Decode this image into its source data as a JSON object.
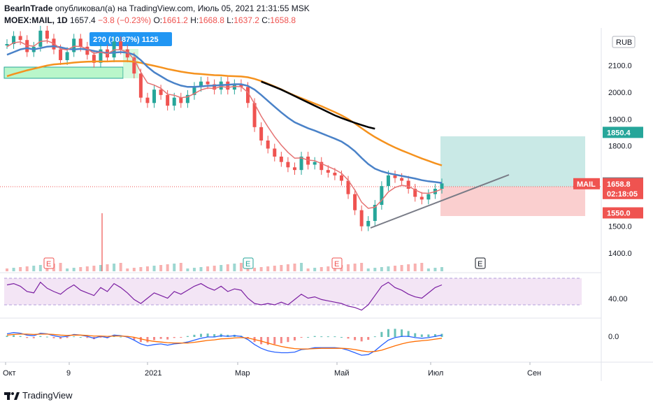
{
  "header": {
    "author": "BearInTrade",
    "published_text": "опубликовал(а) на TradingView.com, Июль 05, 2021 21:31:55 MSK",
    "symbol": "MOEX:MAIL, 1D",
    "last": "1657.4",
    "change": "−3.8 (−0.23%)",
    "o_label": "O:",
    "o_value": "1661.2",
    "h_label": "H:",
    "h_value": "1668.8",
    "l_label": "L:",
    "l_value": "1637.2",
    "c_label": "C:",
    "c_value": "1658.8"
  },
  "footer": {
    "brand": "TradingView"
  },
  "colors": {
    "up": "#26a69a",
    "down": "#ef5350",
    "ema_slow": "#f5921e",
    "ema_mid": "#4a82c8",
    "ema_black": "#000000",
    "rsi": "#7b1fa2",
    "rsi_band": "#e9d8f8",
    "macd": "#2962ff",
    "signal": "#ff6d00",
    "target": "#26a69a",
    "stop": "#ef5350"
  },
  "chart_data": [
    {
      "type": "candlestick",
      "symbol": "MAIL",
      "timeframe": "1D",
      "currency_badge": "RUB",
      "y_ticks": [
        "2100.0",
        "2000.0",
        "1900.0",
        "1800.0",
        "1500.0",
        "1400.0"
      ],
      "y_range": [
        1340,
        2240
      ],
      "x_ticks": [
        "Окт",
        "9",
        "2021",
        "Мар",
        "Май",
        "Июл",
        "Сен"
      ],
      "price_tags": [
        {
          "label": "1850.4",
          "value": 1850.4,
          "color": "#26a69a"
        },
        {
          "label": "1661.8",
          "value": 1661.8,
          "color": "#787b86"
        },
        {
          "label": "1658.8",
          "value": 1658.8,
          "color": "#ef5350",
          "name": "MAIL",
          "countdown": "02:18:05"
        },
        {
          "label": "1550.0",
          "value": 1550.0,
          "color": "#ef5350"
        }
      ],
      "range_label": "2?0 (10.87%) 1125",
      "earnings_markers": [
        "E",
        "E",
        "E",
        "E"
      ],
      "series": [
        {
          "role": "close",
          "values": [
            2180,
            2210,
            2195,
            2150,
            2170,
            2230,
            2200,
            2160,
            2120,
            2150,
            2200,
            2170,
            2140,
            2110,
            2160,
            2130,
            2190,
            2160,
            2130,
            2070,
            1980,
            1960,
            2010,
            1990,
            1950,
            1980,
            1960,
            1990,
            2020,
            2040,
            2030,
            2010,
            2040,
            2010,
            2030,
            2020,
            1960,
            1870,
            1820,
            1790,
            1760,
            1740,
            1720,
            1710,
            1760,
            1730,
            1740,
            1710,
            1700,
            1690,
            1670,
            1620,
            1560,
            1500,
            1520,
            1580,
            1650,
            1690,
            1680,
            1670,
            1640,
            1610,
            1600,
            1620,
            1640,
            1660
          ]
        },
        {
          "role": "ema_fast",
          "values": [
            2170,
            2185,
            2188,
            2175,
            2172,
            2190,
            2192,
            2182,
            2162,
            2158,
            2172,
            2171,
            2162,
            2145,
            2150,
            2143,
            2158,
            2159,
            2150,
            2123,
            2075,
            2035,
            2027,
            2015,
            1993,
            1989,
            1980,
            1983,
            1995,
            2009,
            2016,
            2014,
            2022,
            2018,
            2022,
            2021,
            2000,
            1957,
            1911,
            1871,
            1834,
            1803,
            1776,
            1754,
            1755,
            1747,
            1745,
            1734,
            1723,
            1712,
            1698,
            1672,
            1635,
            1590,
            1567,
            1571,
            1597,
            1628,
            1645,
            1653,
            1649,
            1636,
            1624,
            1623,
            1629,
            1639
          ]
        },
        {
          "role": "ema_mid",
          "values": [
            2140,
            2150,
            2160,
            2165,
            2160,
            2165,
            2170,
            2172,
            2168,
            2162,
            2160,
            2162,
            2160,
            2154,
            2150,
            2146,
            2148,
            2150,
            2148,
            2140,
            2120,
            2095,
            2075,
            2060,
            2045,
            2034,
            2025,
            2020,
            2020,
            2022,
            2024,
            2025,
            2027,
            2028,
            2030,
            2030,
            2024,
            2010,
            1990,
            1968,
            1946,
            1925,
            1905,
            1888,
            1877,
            1866,
            1857,
            1847,
            1837,
            1827,
            1816,
            1800,
            1780,
            1755,
            1732,
            1715,
            1705,
            1698,
            1693,
            1688,
            1683,
            1678,
            1672,
            1668,
            1665,
            1662
          ]
        },
        {
          "role": "ema_slow",
          "values": [
            2060,
            2068,
            2075,
            2082,
            2088,
            2094,
            2100,
            2104,
            2106,
            2108,
            2111,
            2113,
            2114,
            2115,
            2115,
            2115,
            2116,
            2116,
            2116,
            2114,
            2110,
            2104,
            2099,
            2093,
            2087,
            2082,
            2077,
            2073,
            2070,
            2068,
            2066,
            2064,
            2063,
            2061,
            2060,
            2059,
            2056,
            2050,
            2042,
            2032,
            2022,
            2011,
            1999,
            1988,
            1978,
            1968,
            1958,
            1948,
            1937,
            1926,
            1914,
            1900,
            1884,
            1866,
            1849,
            1833,
            1819,
            1806,
            1794,
            1783,
            1773,
            1763,
            1753,
            1744,
            1735,
            1727
          ]
        },
        {
          "role": "ema_black",
          "start_index": 38,
          "values": [
            2040,
            2030,
            2020,
            2010,
            1998,
            1986,
            1974,
            1962,
            1950,
            1938,
            1926,
            1914,
            1904,
            1895,
            1886,
            1878,
            1870,
            1864
          ]
        },
        {
          "role": "rsi",
          "values": [
            60,
            62,
            58,
            50,
            48,
            64,
            55,
            50,
            46,
            54,
            60,
            52,
            48,
            44,
            56,
            50,
            62,
            56,
            48,
            38,
            32,
            40,
            48,
            44,
            40,
            50,
            46,
            52,
            58,
            62,
            56,
            52,
            58,
            50,
            54,
            52,
            40,
            32,
            30,
            32,
            30,
            34,
            30,
            38,
            46,
            40,
            42,
            38,
            36,
            34,
            32,
            28,
            26,
            22,
            30,
            44,
            58,
            64,
            56,
            52,
            46,
            42,
            40,
            48,
            56,
            60
          ]
        },
        {
          "role": "macd",
          "values": [
            10,
            14,
            12,
            6,
            4,
            12,
            10,
            4,
            0,
            2,
            8,
            6,
            2,
            -4,
            2,
            -2,
            6,
            4,
            0,
            -10,
            -22,
            -28,
            -24,
            -22,
            -26,
            -22,
            -20,
            -16,
            -10,
            -4,
            0,
            0,
            4,
            2,
            4,
            2,
            -8,
            -24,
            -36,
            -44,
            -48,
            -50,
            -50,
            -48,
            -40,
            -38,
            -34,
            -34,
            -34,
            -34,
            -36,
            -42,
            -50,
            -58,
            -56,
            -44,
            -26,
            -10,
            -2,
            2,
            2,
            -2,
            -4,
            -2,
            2,
            6
          ]
        },
        {
          "role": "signal",
          "values": [
            6,
            8,
            9,
            9,
            8,
            9,
            9,
            8,
            6,
            5,
            6,
            6,
            5,
            3,
            3,
            2,
            3,
            3,
            2,
            -1,
            -6,
            -11,
            -14,
            -16,
            -18,
            -19,
            -19,
            -19,
            -17,
            -14,
            -11,
            -9,
            -6,
            -5,
            -3,
            -2,
            -3,
            -8,
            -13,
            -19,
            -25,
            -30,
            -34,
            -37,
            -38,
            -38,
            -37,
            -36,
            -36,
            -36,
            -36,
            -37,
            -40,
            -44,
            -47,
            -46,
            -42,
            -35,
            -28,
            -22,
            -17,
            -14,
            -12,
            -10,
            -7,
            -4
          ]
        }
      ],
      "rsi_ticks": [
        "40.00"
      ],
      "macd_ticks": [
        "0.0"
      ]
    }
  ]
}
